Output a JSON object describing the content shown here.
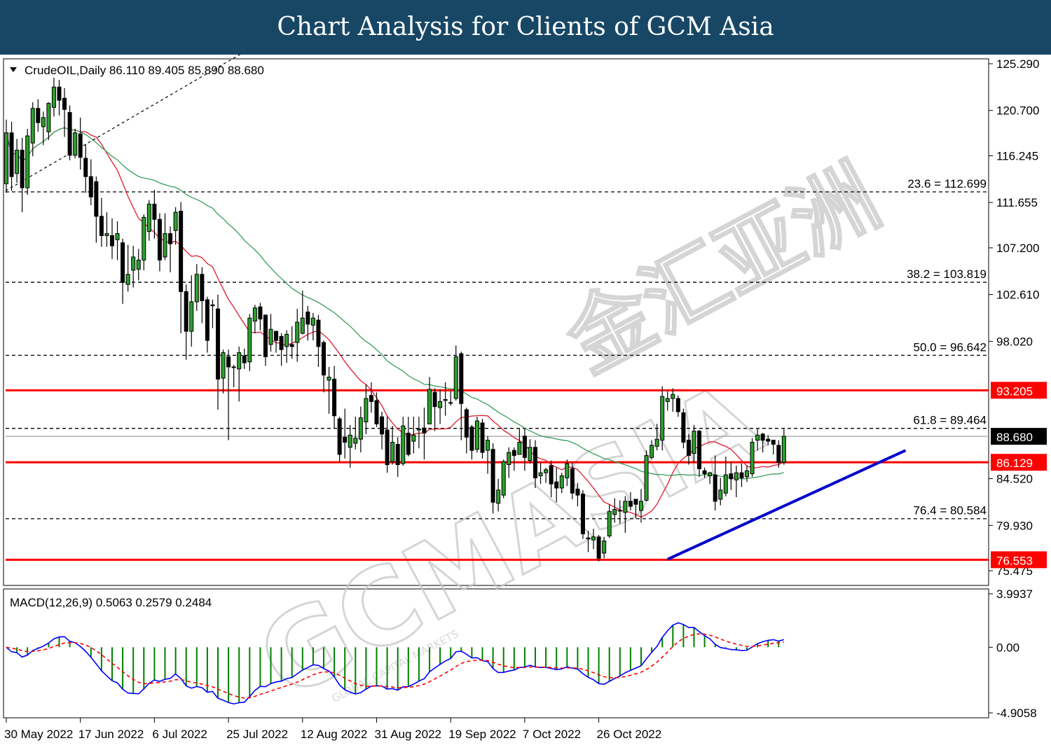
{
  "header": {
    "title": "Chart Analysis for Clients of GCM Asia"
  },
  "watermark": {
    "brand": "GCMASIA",
    "cjk": "金汇亚洲",
    "tagline": "GLOBAL CAPITAL MARKETS"
  },
  "chart_data": {
    "type": "candlestick",
    "symbol_line": "CrudeOIL,Daily  86.110 89.405 85.890 88.680",
    "ohlc_last": {
      "open": 86.11,
      "high": 89.405,
      "low": 85.89,
      "close": 88.68
    },
    "price_axis": {
      "ylim": [
        75.475,
        125.29
      ],
      "ticks": [
        "125.290",
        "120.700",
        "116.245",
        "111.655",
        "107.200",
        "102.610",
        "98.020",
        "84.520",
        "79.930",
        "75.475"
      ]
    },
    "x_axis": {
      "tick_labels": [
        "30 May 2022",
        "17 Jun 2022",
        "6 Jul 2022",
        "25 Jul 2022",
        "12 Aug 2022",
        "31 Aug 2022",
        "19 Sep 2022",
        "7 Oct 2022",
        "26 Oct 2022"
      ]
    },
    "fibonacci_levels": [
      {
        "label": "23.6 = 112.699",
        "value": 112.699
      },
      {
        "label": "38.2 = 103.819",
        "value": 103.819
      },
      {
        "label": "50.0 = 96.642",
        "value": 96.642
      },
      {
        "label": "61.8 = 89.464",
        "value": 89.464
      },
      {
        "label": "76.4 = 80.584",
        "value": 80.584
      }
    ],
    "horizontal_levels": [
      {
        "label": "93.205",
        "value": 93.205,
        "color": "#ff0000"
      },
      {
        "label": "86.129",
        "value": 86.129,
        "color": "#ff0000"
      },
      {
        "label": "76.553",
        "value": 76.553,
        "color": "#ff0000"
      }
    ],
    "current_price": {
      "label": "88.680",
      "value": 88.68
    },
    "trendline": {
      "from": [
        125,
        76.6
      ],
      "to": [
        170,
        87.3
      ],
      "color": "#0000cc"
    },
    "candles": [
      [
        0,
        113.5,
        118.5,
        119.8,
        112.6
      ],
      [
        1,
        118.5,
        114.2,
        119.6,
        112.8
      ],
      [
        2,
        114.5,
        116.8,
        117.9,
        113.6
      ],
      [
        3,
        116.8,
        113.1,
        118.0,
        110.7
      ],
      [
        4,
        113.1,
        118.2,
        118.9,
        112.4
      ],
      [
        5,
        117.5,
        120.9,
        121.5,
        116.2
      ],
      [
        6,
        120.9,
        119.5,
        121.8,
        118.6
      ],
      [
        7,
        119.1,
        120.0,
        120.6,
        117.3
      ],
      [
        8,
        118.6,
        121.4,
        121.5,
        117.8
      ],
      [
        9,
        121.0,
        123.0,
        123.9,
        120.1
      ],
      [
        10,
        123.0,
        121.7,
        123.7,
        120.2
      ],
      [
        11,
        121.9,
        120.8,
        122.9,
        118.1
      ],
      [
        12,
        120.5,
        116.3,
        121.2,
        115.8
      ],
      [
        13,
        116.3,
        118.5,
        118.9,
        116.0
      ],
      [
        14,
        118.4,
        116.1,
        120.0,
        114.9
      ],
      [
        15,
        116.0,
        114.2,
        117.4,
        112.6
      ],
      [
        16,
        114.2,
        112.2,
        115.9,
        111.4
      ],
      [
        17,
        113.7,
        110.3,
        114.2,
        107.7
      ],
      [
        18,
        110.3,
        108.4,
        112.1,
        107.3
      ],
      [
        19,
        108.4,
        108.6,
        110.7,
        107.3
      ],
      [
        20,
        108.4,
        107.4,
        110.1,
        106.1
      ],
      [
        21,
        108.0,
        108.6,
        109.8,
        106.0
      ],
      [
        22,
        107.7,
        103.8,
        108.1,
        101.7
      ],
      [
        23,
        103.6,
        104.6,
        107.5,
        102.9
      ],
      [
        24,
        105.0,
        106.3,
        107.4,
        103.3
      ],
      [
        25,
        105.1,
        106.0,
        107.1,
        104.0
      ],
      [
        26,
        106.0,
        110.2,
        110.5,
        105.0
      ],
      [
        27,
        108.8,
        111.5,
        111.9,
        107.9
      ],
      [
        28,
        111.5,
        110.0,
        112.9,
        108.1
      ],
      [
        29,
        110.0,
        106.0,
        110.6,
        104.9
      ],
      [
        30,
        106.3,
        108.6,
        110.6,
        106.0
      ],
      [
        31,
        108.6,
        107.6,
        109.3,
        104.8
      ],
      [
        32,
        108.9,
        110.7,
        111.2,
        107.5
      ],
      [
        33,
        110.8,
        102.9,
        111.7,
        98.8
      ],
      [
        34,
        102.9,
        99.0,
        103.6,
        96.2
      ],
      [
        35,
        99.0,
        101.9,
        104.5,
        97.5
      ],
      [
        36,
        101.9,
        104.6,
        105.6,
        101.0
      ],
      [
        37,
        104.6,
        102.0,
        105.3,
        99.8
      ],
      [
        38,
        102.1,
        98.1,
        102.4,
        96.9
      ],
      [
        39,
        101.5,
        101.6,
        102.1,
        99.3
      ],
      [
        40,
        101.2,
        94.3,
        102.6,
        91.3
      ],
      [
        41,
        94.4,
        96.9,
        97.2,
        92.9
      ],
      [
        42,
        96.5,
        95.5,
        97.2,
        88.3
      ],
      [
        43,
        95.5,
        95.5,
        95.7,
        93.5
      ],
      [
        44,
        95.3,
        96.9,
        97.5,
        92.1
      ],
      [
        45,
        96.6,
        95.9,
        97.3,
        95.3
      ],
      [
        46,
        96.0,
        100.3,
        100.7,
        95.1
      ],
      [
        47,
        100.0,
        101.3,
        101.6,
        98.8
      ],
      [
        48,
        101.4,
        100.2,
        101.8,
        99.1
      ],
      [
        49,
        100.6,
        96.5,
        100.6,
        95.6
      ],
      [
        50,
        97.7,
        99.2,
        100.7,
        97.0
      ],
      [
        51,
        99.0,
        98.1,
        98.9,
        96.9
      ],
      [
        52,
        98.5,
        97.2,
        98.8,
        95.6
      ],
      [
        53,
        97.5,
        98.7,
        99.1,
        95.9
      ],
      [
        54,
        97.7,
        97.5,
        99.5,
        96.3
      ],
      [
        55,
        97.9,
        99.9,
        101.2,
        96.0
      ],
      [
        56,
        98.8,
        100.3,
        103.0,
        98.7
      ],
      [
        57,
        100.9,
        99.7,
        101.5,
        98.1
      ],
      [
        58,
        99.6,
        100.3,
        100.8,
        98.1
      ],
      [
        59,
        100.1,
        97.5,
        100.6,
        95.5
      ],
      [
        60,
        97.9,
        94.7,
        98.1,
        93.0
      ],
      [
        61,
        94.2,
        94.5,
        95.5,
        90.9
      ],
      [
        62,
        94.3,
        90.7,
        95.6,
        89.5
      ],
      [
        63,
        90.4,
        86.9,
        90.6,
        86.2
      ],
      [
        64,
        88.6,
        88.1,
        91.4,
        86.5
      ],
      [
        65,
        87.6,
        88.8,
        89.8,
        85.6
      ],
      [
        66,
        88.0,
        88.5,
        90.6,
        87.4
      ],
      [
        67,
        88.4,
        90.5,
        91.6,
        87.1
      ],
      [
        68,
        90.1,
        92.4,
        93.8,
        88.9
      ],
      [
        69,
        92.7,
        92.1,
        94.0,
        91.0
      ],
      [
        70,
        92.2,
        89.9,
        93.0,
        89.6
      ],
      [
        71,
        90.6,
        88.9,
        91.1,
        87.4
      ],
      [
        72,
        89.3,
        85.9,
        90.6,
        85.1
      ],
      [
        73,
        86.2,
        88.1,
        89.7,
        85.9
      ],
      [
        74,
        87.9,
        85.9,
        88.6,
        84.7
      ],
      [
        75,
        86.0,
        89.7,
        90.6,
        85.8
      ],
      [
        76,
        89.0,
        86.9,
        90.6,
        86.7
      ],
      [
        77,
        88.2,
        88.8,
        90.6,
        87.0
      ],
      [
        78,
        89.3,
        89.4,
        90.6,
        87.5
      ],
      [
        79,
        89.5,
        89.0,
        91.5,
        86.4
      ],
      [
        80,
        89.9,
        93.3,
        94.5,
        90.5
      ],
      [
        81,
        93.0,
        91.6,
        93.4,
        89.2
      ],
      [
        82,
        91.5,
        92.1,
        93.3,
        89.9
      ],
      [
        83,
        92.2,
        92.3,
        94.0,
        90.7
      ],
      [
        84,
        92.0,
        92.0,
        93.1,
        91.7
      ],
      [
        85,
        92.4,
        96.5,
        97.6,
        92.2
      ],
      [
        86,
        96.8,
        91.9,
        97.0,
        88.3
      ],
      [
        87,
        91.3,
        88.6,
        91.5,
        87.0
      ],
      [
        88,
        89.6,
        87.3,
        89.8,
        86.4
      ],
      [
        89,
        87.4,
        90.2,
        90.6,
        87.1
      ],
      [
        90,
        90.0,
        87.1,
        90.4,
        86.5
      ],
      [
        91,
        87.3,
        88.3,
        88.7,
        85.0
      ],
      [
        92,
        87.4,
        82.2,
        88.0,
        81.1
      ],
      [
        93,
        82.1,
        83.4,
        84.5,
        81.3
      ],
      [
        94,
        82.9,
        86.2,
        86.4,
        82.6
      ],
      [
        95,
        85.9,
        87.1,
        87.6,
        84.6
      ],
      [
        96,
        87.3,
        86.8,
        87.6,
        85.3
      ],
      [
        97,
        86.9,
        88.1,
        89.4,
        87.0
      ],
      [
        98,
        88.7,
        86.6,
        89.5,
        85.3
      ],
      [
        99,
        86.3,
        87.6,
        88.4,
        86.0
      ],
      [
        100,
        87.6,
        84.6,
        88.3,
        83.6
      ],
      [
        101,
        84.8,
        85.1,
        86.1,
        84.0
      ],
      [
        102,
        85.1,
        85.4,
        85.6,
        84.1
      ],
      [
        103,
        85.8,
        84.0,
        86.3,
        82.7
      ],
      [
        104,
        84.2,
        83.6,
        85.6,
        82.2
      ],
      [
        105,
        83.6,
        84.8,
        85.1,
        83.1
      ],
      [
        106,
        84.6,
        86.0,
        86.4,
        83.8
      ],
      [
        107,
        85.5,
        83.1,
        86.1,
        82.5
      ],
      [
        108,
        83.5,
        82.9,
        84.1,
        81.8
      ],
      [
        109,
        83.0,
        79.1,
        83.4,
        78.6
      ],
      [
        110,
        78.6,
        78.7,
        79.4,
        77.3
      ],
      [
        111,
        78.5,
        78.8,
        79.6,
        77.6
      ],
      [
        112,
        78.8,
        76.7,
        79.0,
        76.4
      ],
      [
        113,
        77.2,
        78.4,
        78.8,
        76.7
      ],
      [
        114,
        78.9,
        81.3,
        82.0,
        78.7
      ],
      [
        115,
        81.0,
        81.5,
        82.6,
        80.2
      ],
      [
        116,
        81.4,
        81.4,
        82.4,
        80.1
      ],
      [
        117,
        81.2,
        82.3,
        82.8,
        79.2
      ],
      [
        118,
        82.3,
        81.8,
        83.2,
        81.4
      ],
      [
        119,
        82.5,
        82.0,
        82.4,
        80.6
      ],
      [
        120,
        81.4,
        82.3,
        83.5,
        80.2
      ],
      [
        121,
        82.4,
        86.8,
        87.3,
        82.3
      ],
      [
        122,
        86.6,
        87.8,
        88.3,
        86.4
      ],
      [
        123,
        87.7,
        88.4,
        89.9,
        87.3
      ],
      [
        124,
        88.3,
        92.6,
        93.6,
        87.3
      ],
      [
        125,
        92.1,
        92.4,
        93.1,
        91.2
      ],
      [
        126,
        92.4,
        92.8,
        93.4,
        91.1
      ],
      [
        127,
        92.4,
        91.1,
        92.7,
        90.6
      ],
      [
        128,
        91.0,
        88.1,
        91.4,
        87.5
      ],
      [
        129,
        88.3,
        86.8,
        88.9,
        85.9
      ],
      [
        130,
        87.0,
        89.2,
        89.8,
        86.1
      ],
      [
        131,
        89.2,
        85.5,
        89.3,
        84.7
      ],
      [
        132,
        85.3,
        85.0,
        85.6,
        84.6
      ],
      [
        133,
        84.8,
        85.1,
        85.2,
        84.0
      ],
      [
        134,
        84.9,
        82.3,
        86.8,
        81.4
      ],
      [
        135,
        82.5,
        83.4,
        84.6,
        81.9
      ],
      [
        136,
        83.1,
        84.9,
        86.7,
        82.8
      ],
      [
        137,
        85.0,
        84.5,
        86.2,
        83.4
      ],
      [
        138,
        84.4,
        85.1,
        85.8,
        82.7
      ],
      [
        139,
        85.1,
        84.6,
        86.0,
        83.7
      ],
      [
        140,
        84.7,
        85.3,
        85.8,
        84.2
      ],
      [
        141,
        85.0,
        88.1,
        88.5,
        84.7
      ],
      [
        142,
        88.3,
        88.8,
        89.4,
        87.3
      ],
      [
        143,
        88.9,
        88.3,
        89.0,
        87.1
      ],
      [
        144,
        88.4,
        88.2,
        88.8,
        87.8
      ],
      [
        145,
        88.3,
        87.9,
        88.3,
        86.9
      ],
      [
        146,
        87.8,
        86.1,
        88.3,
        85.6
      ],
      [
        147,
        86.11,
        88.68,
        89.405,
        85.89
      ]
    ],
    "macd": {
      "label": "MACD(12,26,9) 0.5063 0.2579 0.2484",
      "ylim": [
        -4.9058,
        3.9937
      ],
      "ticks": [
        "3.9937",
        "0.00",
        "-4.9058"
      ],
      "main_color": "#0000ff",
      "signal_color": "#ff0000",
      "hist_color": "#008000"
    }
  }
}
